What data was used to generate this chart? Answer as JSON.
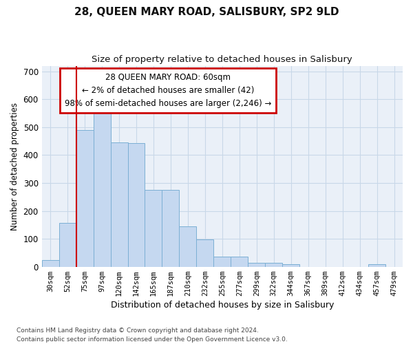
{
  "title1": "28, QUEEN MARY ROAD, SALISBURY, SP2 9LD",
  "title2": "Size of property relative to detached houses in Salisbury",
  "xlabel": "Distribution of detached houses by size in Salisbury",
  "ylabel": "Number of detached properties",
  "categories": [
    "30sqm",
    "52sqm",
    "75sqm",
    "97sqm",
    "120sqm",
    "142sqm",
    "165sqm",
    "187sqm",
    "210sqm",
    "232sqm",
    "255sqm",
    "277sqm",
    "299sqm",
    "322sqm",
    "344sqm",
    "367sqm",
    "389sqm",
    "412sqm",
    "434sqm",
    "457sqm",
    "479sqm"
  ],
  "values": [
    25,
    157,
    490,
    563,
    445,
    443,
    275,
    275,
    145,
    97,
    36,
    36,
    14,
    14,
    8,
    0,
    0,
    0,
    0,
    8,
    0
  ],
  "bar_color": "#c5d8f0",
  "bar_edge_color": "#7bafd4",
  "annotation_text": "28 QUEEN MARY ROAD: 60sqm\n← 2% of detached houses are smaller (42)\n98% of semi-detached houses are larger (2,246) →",
  "annotation_box_color": "#ffffff",
  "annotation_box_edge": "#cc0000",
  "annotation_line_color": "#cc0000",
  "ylim": [
    0,
    720
  ],
  "yticks": [
    0,
    100,
    200,
    300,
    400,
    500,
    600,
    700
  ],
  "grid_color": "#c8d8e8",
  "background_color": "#eaf0f8",
  "footer": "Contains HM Land Registry data © Crown copyright and database right 2024.\nContains public sector information licensed under the Open Government Licence v3.0."
}
